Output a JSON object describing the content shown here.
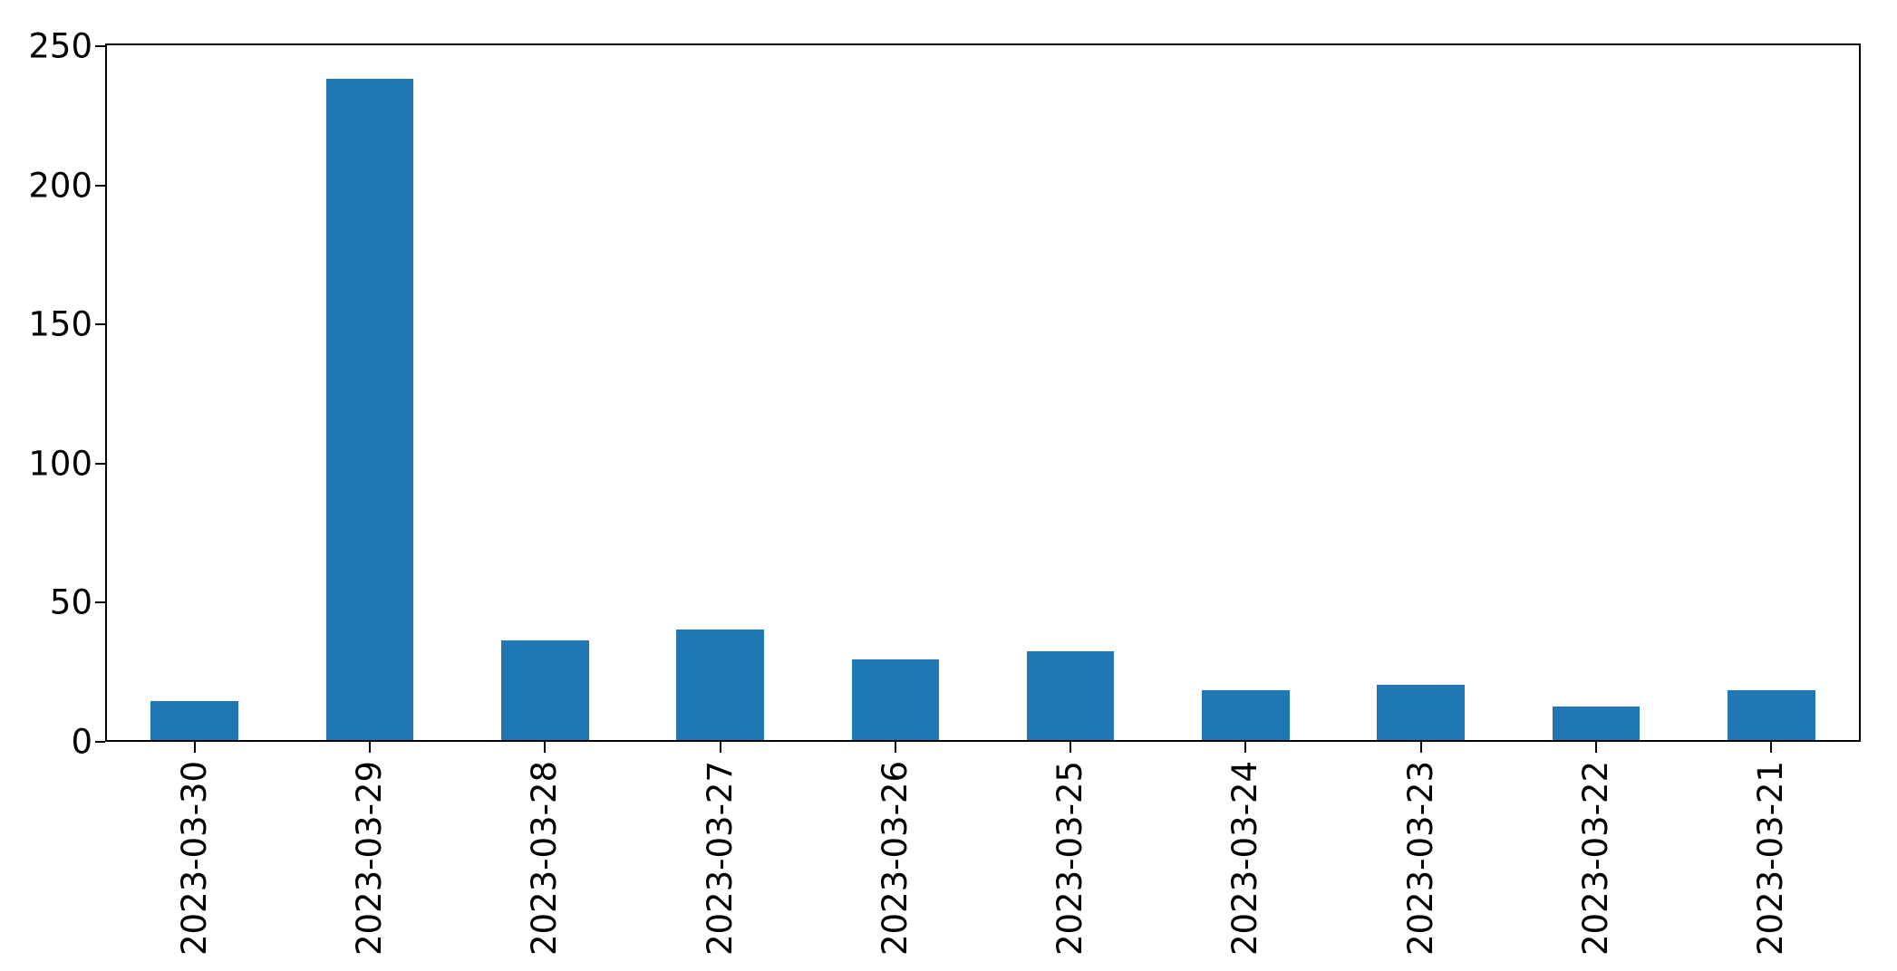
{
  "figure": {
    "background": "#ffffff"
  },
  "chart_data": {
    "type": "bar",
    "title": "",
    "xlabel": "",
    "ylabel": "",
    "categories": [
      "2023-03-30",
      "2023-03-29",
      "2023-03-28",
      "2023-03-27",
      "2023-03-26",
      "2023-03-25",
      "2023-03-24",
      "2023-03-23",
      "2023-03-22",
      "2023-03-21"
    ],
    "values": [
      14,
      239,
      36,
      40,
      29,
      32,
      18,
      20,
      12,
      18
    ],
    "yticks": [
      0,
      50,
      100,
      150,
      200,
      250
    ],
    "ylim": [
      0,
      251
    ],
    "bar_color": "#1f77b4",
    "axis_color": "#000000",
    "tick_label_color": "#000000",
    "grid": false,
    "legend": "none",
    "x_tick_rotation_deg": 90,
    "bar_width_fraction": 0.5
  }
}
